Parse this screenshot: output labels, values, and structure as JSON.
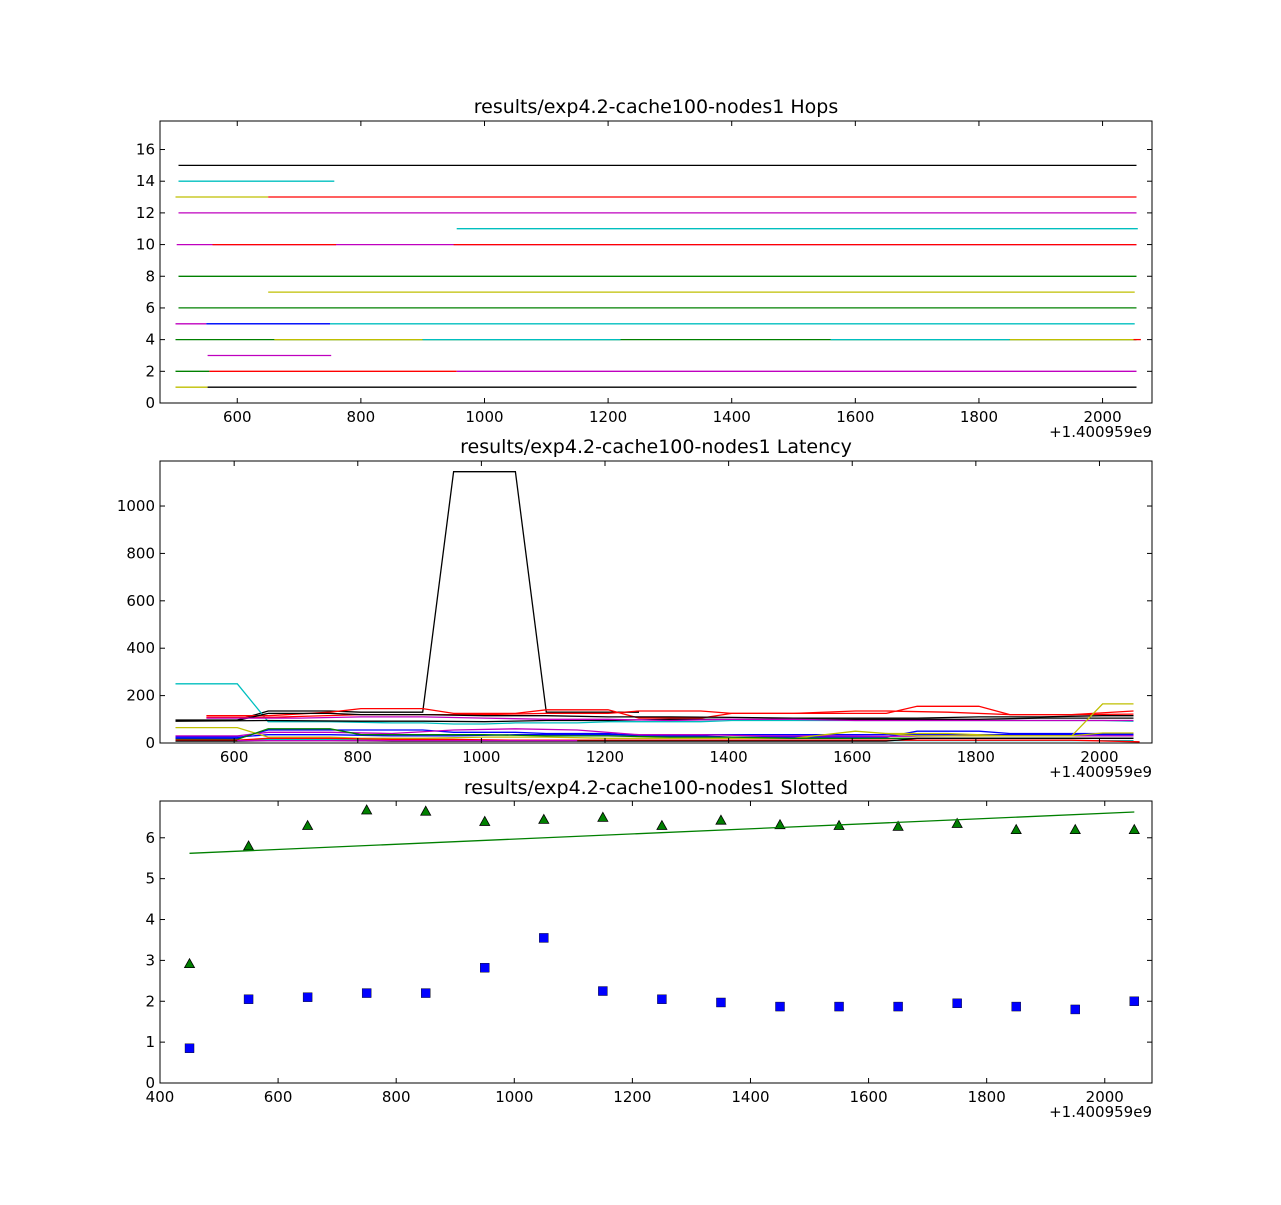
{
  "chart_data": [
    {
      "type": "line",
      "title": "results/exp4.2-cache100-nodes1 Hops",
      "xlabel": "",
      "ylabel": "",
      "x_offset_label": "+1.400959e9",
      "xlim": [
        475,
        2080
      ],
      "ylim": [
        0,
        17.8
      ],
      "xticks": [
        600,
        800,
        1000,
        1200,
        1400,
        1600,
        1800,
        2000
      ],
      "yticks": [
        0,
        2,
        4,
        6,
        8,
        10,
        12,
        14,
        16
      ],
      "series": [
        {
          "color": "#000000",
          "x": [
            505,
            2055
          ],
          "y": [
            15,
            15
          ]
        },
        {
          "color": "#00bfbf",
          "x": [
            505,
            757
          ],
          "y": [
            14,
            14
          ]
        },
        {
          "color": "#bfbf00",
          "x": [
            500,
            650
          ],
          "y": [
            13,
            13
          ]
        },
        {
          "color": "#ff0000",
          "x": [
            650,
            2055
          ],
          "y": [
            13,
            13
          ]
        },
        {
          "color": "#bf00bf",
          "x": [
            505,
            2055
          ],
          "y": [
            12,
            12
          ]
        },
        {
          "color": "#00bfbf",
          "x": [
            955,
            2057
          ],
          "y": [
            11,
            11
          ]
        },
        {
          "color": "#bf00bf",
          "x": [
            502,
            2055
          ],
          "y": [
            10,
            10
          ]
        },
        {
          "color": "#ff0000",
          "x": [
            560,
            760
          ],
          "y": [
            10,
            10
          ]
        },
        {
          "color": "#ff0000",
          "x": [
            950,
            2055
          ],
          "y": [
            10,
            10
          ]
        },
        {
          "color": "#008000",
          "x": [
            505,
            2055
          ],
          "y": [
            8,
            8
          ]
        },
        {
          "color": "#bfbf00",
          "x": [
            650,
            2052
          ],
          "y": [
            7,
            7
          ]
        },
        {
          "color": "#008000",
          "x": [
            505,
            2055
          ],
          "y": [
            6,
            6
          ]
        },
        {
          "color": "#bf00bf",
          "x": [
            500,
            550
          ],
          "y": [
            5,
            5
          ]
        },
        {
          "color": "#00bfbf",
          "x": [
            550,
            2052
          ],
          "y": [
            5,
            5
          ]
        },
        {
          "color": "#0000ff",
          "x": [
            550,
            750
          ],
          "y": [
            5,
            5
          ]
        },
        {
          "color": "#008000",
          "x": [
            500,
            2055
          ],
          "y": [
            4,
            4
          ]
        },
        {
          "color": "#bfbf00",
          "x": [
            660,
            900
          ],
          "y": [
            4,
            4
          ]
        },
        {
          "color": "#00bfbf",
          "x": [
            900,
            1220
          ],
          "y": [
            4,
            4
          ]
        },
        {
          "color": "#00bfbf",
          "x": [
            1560,
            1850
          ],
          "y": [
            4,
            4
          ]
        },
        {
          "color": "#bfbf00",
          "x": [
            1850,
            2050
          ],
          "y": [
            4,
            4
          ]
        },
        {
          "color": "#ff0000",
          "x": [
            2050,
            2062
          ],
          "y": [
            4,
            4
          ]
        },
        {
          "color": "#bf00bf",
          "x": [
            552,
            752
          ],
          "y": [
            3,
            3
          ]
        },
        {
          "color": "#008000",
          "x": [
            500,
            555
          ],
          "y": [
            2,
            2
          ]
        },
        {
          "color": "#ff0000",
          "x": [
            555,
            955
          ],
          "y": [
            2,
            2
          ]
        },
        {
          "color": "#bf00bf",
          "x": [
            955,
            2055
          ],
          "y": [
            2,
            2
          ]
        },
        {
          "color": "#bfbf00",
          "x": [
            500,
            552
          ],
          "y": [
            1,
            1
          ]
        },
        {
          "color": "#000000",
          "x": [
            552,
            2055
          ],
          "y": [
            1,
            1
          ]
        }
      ]
    },
    {
      "type": "line",
      "title": "results/exp4.2-cache100-nodes1 Latency",
      "xlabel": "",
      "ylabel": "",
      "x_offset_label": "+1.400959e9",
      "xlim": [
        480,
        2085
      ],
      "ylim": [
        0,
        1190
      ],
      "xticks": [
        600,
        800,
        1000,
        1200,
        1400,
        1600,
        1800,
        2000
      ],
      "yticks": [
        0,
        200,
        400,
        600,
        800,
        1000
      ],
      "series": [
        {
          "color": "#000000",
          "x": [
            505,
            605,
            655,
            755,
            805,
            905,
            955,
            1005,
            1055,
            1105,
            1205,
            1255
          ],
          "y": [
            97,
            97,
            135,
            135,
            130,
            130,
            1145,
            1145,
            1145,
            130,
            130,
            130
          ]
        },
        {
          "color": "#00bfbf",
          "x": [
            505,
            605,
            655,
            755,
            855,
            905,
            955,
            1005,
            1055,
            1105,
            1155,
            1205,
            1255,
            1355,
            1405,
            1505,
            1605,
            1705,
            1805,
            1905,
            2005,
            2055
          ],
          "y": [
            250,
            250,
            90,
            90,
            85,
            85,
            80,
            80,
            85,
            85,
            85,
            90,
            90,
            90,
            95,
            95,
            95,
            95,
            95,
            95,
            95,
            92
          ]
        },
        {
          "color": "#ff0000",
          "x": [
            555,
            655,
            755,
            805,
            905,
            955,
            1055,
            1105,
            1205,
            1255,
            1355,
            1405,
            1505,
            1605,
            1655,
            1705,
            1805,
            1855,
            1955,
            2055
          ],
          "y": [
            115,
            115,
            130,
            145,
            145,
            125,
            125,
            140,
            140,
            105,
            105,
            125,
            125,
            125,
            125,
            155,
            155,
            120,
            120,
            135
          ]
        },
        {
          "color": "#ff0000",
          "x": [
            555,
            655,
            805,
            905,
            1005,
            1105,
            1205,
            1255,
            1355,
            1405,
            1505,
            1605,
            1655,
            1755,
            1855,
            1955,
            2055
          ],
          "y": [
            108,
            108,
            120,
            120,
            120,
            125,
            125,
            135,
            135,
            125,
            125,
            135,
            135,
            130,
            120,
            120,
            122
          ]
        },
        {
          "color": "#000000",
          "x": [
            505,
            605,
            655,
            755,
            805,
            905,
            1005,
            1105,
            1205,
            1305,
            1405,
            1505,
            1605,
            1705,
            1805,
            1905,
            2005,
            2055
          ],
          "y": [
            95,
            95,
            125,
            125,
            120,
            120,
            115,
            115,
            110,
            110,
            108,
            105,
            105,
            105,
            110,
            110,
            115,
            115
          ]
        },
        {
          "color": "#000000",
          "x": [
            505,
            655,
            805,
            905,
            1005,
            1105,
            1205,
            1305,
            1405,
            1505,
            1605,
            1705,
            1805,
            1905,
            2005,
            2055
          ],
          "y": [
            92,
            95,
            92,
            92,
            90,
            95,
            95,
            100,
            100,
            100,
            100,
            100,
            100,
            105,
            105,
            105
          ]
        },
        {
          "color": "#bf00bf",
          "x": [
            555,
            655,
            705,
            805,
            905,
            1005,
            1105,
            1205,
            1305,
            1405,
            1505,
            1605,
            1705,
            1805,
            1905,
            2005,
            2055
          ],
          "y": [
            105,
            105,
            105,
            110,
            110,
            105,
            100,
            100,
            95,
            100,
            100,
            95,
            95,
            95,
            95,
            95,
            95
          ]
        },
        {
          "color": "#0000ff",
          "x": [
            505,
            605,
            655,
            705,
            805,
            905,
            955,
            1005,
            1055,
            1105,
            1155,
            1205,
            1255,
            1305,
            1355,
            1405,
            1505,
            1605,
            1655,
            1705,
            1805,
            1855,
            1905,
            1955,
            2005,
            2055
          ],
          "y": [
            20,
            20,
            55,
            55,
            55,
            55,
            45,
            45,
            45,
            40,
            40,
            40,
            30,
            30,
            30,
            25,
            25,
            25,
            25,
            50,
            50,
            40,
            40,
            40,
            40,
            40
          ]
        },
        {
          "color": "#0000ff",
          "x": [
            505,
            605,
            655,
            755,
            855,
            955,
            1055,
            1155,
            1255,
            1355,
            1455,
            1555,
            1655,
            1755,
            1855,
            1955,
            2055
          ],
          "y": [
            25,
            25,
            35,
            35,
            30,
            30,
            35,
            35,
            35,
            35,
            35,
            35,
            35,
            35,
            35,
            35,
            35
          ]
        },
        {
          "color": "#bf00bf",
          "x": [
            505,
            605,
            655,
            755,
            855,
            955,
            1055,
            1155,
            1255,
            1355,
            1455,
            1555,
            1655,
            1755,
            1855,
            1955,
            2055
          ],
          "y": [
            30,
            30,
            45,
            45,
            40,
            55,
            60,
            55,
            35,
            35,
            30,
            30,
            28,
            30,
            30,
            30,
            30
          ]
        },
        {
          "color": "#bfbf00",
          "x": [
            505,
            605,
            655,
            755,
            805,
            905,
            1005,
            1105,
            1205,
            1305,
            1405,
            1505,
            1605,
            1705,
            1805,
            1905,
            1955,
            2005,
            2055
          ],
          "y": [
            65,
            65,
            25,
            25,
            20,
            20,
            25,
            25,
            20,
            20,
            20,
            20,
            50,
            30,
            30,
            30,
            30,
            165,
            165
          ]
        },
        {
          "color": "#008000",
          "x": [
            505,
            605,
            655,
            755,
            805,
            905,
            1005,
            1105,
            1205,
            1305,
            1405,
            1505,
            1605,
            1705,
            1805,
            1905,
            2005,
            2055
          ],
          "y": [
            15,
            15,
            60,
            60,
            35,
            35,
            35,
            30,
            30,
            25,
            25,
            20,
            20,
            20,
            20,
            20,
            20,
            20
          ]
        },
        {
          "color": "#00bfbf",
          "x": [
            505,
            605,
            655,
            755,
            855,
            955,
            1055,
            1155,
            1255,
            1355,
            1455,
            1555,
            1655,
            1755,
            1855,
            1955,
            2055
          ],
          "y": [
            10,
            10,
            15,
            15,
            10,
            10,
            10,
            10,
            10,
            10,
            10,
            10,
            10,
            10,
            10,
            10,
            10
          ]
        },
        {
          "color": "#ff0000",
          "x": [
            505,
            605,
            655,
            755,
            855,
            955,
            1055,
            1155,
            1255,
            1355,
            1455,
            1555,
            1655,
            1755,
            1855,
            1955,
            2065
          ],
          "y": [
            12,
            12,
            20,
            20,
            15,
            15,
            12,
            12,
            12,
            12,
            12,
            12,
            12,
            12,
            12,
            12,
            5
          ]
        },
        {
          "color": "#000000",
          "x": [
            505,
            605,
            655,
            755,
            855,
            955,
            1055,
            1155,
            1255,
            1355,
            1455,
            1555,
            1655,
            1705,
            1805,
            1905,
            2005,
            2055
          ],
          "y": [
            8,
            8,
            10,
            10,
            8,
            8,
            8,
            8,
            8,
            8,
            8,
            8,
            8,
            20,
            20,
            20,
            20,
            20
          ]
        },
        {
          "color": "#bf00bf",
          "x": [
            605,
            655,
            755,
            855,
            955,
            1055,
            1155
          ],
          "y": [
            10,
            10,
            10,
            10,
            10,
            10,
            10
          ]
        },
        {
          "color": "#bfbf00",
          "x": [
            1655,
            1755,
            1855,
            1955,
            2005,
            2055
          ],
          "y": [
            40,
            40,
            30,
            30,
            42,
            42
          ]
        }
      ]
    },
    {
      "type": "scatter",
      "title": "results/exp4.2-cache100-nodes1 Slotted",
      "xlabel": "",
      "ylabel": "",
      "x_offset_label": "+1.400959e9",
      "xlim": [
        400,
        2080
      ],
      "ylim": [
        0,
        6.9
      ],
      "xticks": [
        400,
        600,
        800,
        1000,
        1200,
        1400,
        1600,
        1800,
        2000
      ],
      "yticks": [
        0,
        1,
        2,
        3,
        4,
        5,
        6
      ],
      "series": [
        {
          "marker": "triangle",
          "color": "#008000",
          "x": [
            450,
            550,
            650,
            750,
            850,
            950,
            1050,
            1150,
            1250,
            1350,
            1450,
            1550,
            1650,
            1750,
            1850,
            1950,
            2050
          ],
          "y": [
            2.92,
            5.8,
            6.3,
            6.68,
            6.65,
            6.4,
            6.45,
            6.5,
            6.3,
            6.43,
            6.32,
            6.3,
            6.28,
            6.35,
            6.2,
            6.2,
            6.2
          ]
        },
        {
          "marker": "square",
          "color": "#0000ff",
          "x": [
            450,
            550,
            650,
            750,
            850,
            950,
            1050,
            1150,
            1250,
            1350,
            1450,
            1550,
            1650,
            1750,
            1850,
            1950,
            2050
          ],
          "y": [
            0.85,
            2.05,
            2.1,
            2.2,
            2.2,
            2.82,
            3.55,
            2.25,
            2.05,
            1.97,
            1.87,
            1.87,
            1.87,
            1.95,
            1.87,
            1.8,
            2.0
          ]
        },
        {
          "marker": "none",
          "line": true,
          "color": "#008000",
          "x": [
            450,
            2050
          ],
          "y": [
            5.62,
            6.63
          ]
        }
      ]
    }
  ]
}
